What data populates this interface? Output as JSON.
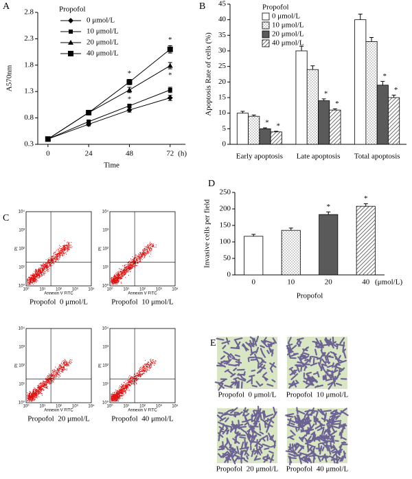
{
  "chart_data": [
    {
      "type": "line",
      "panel": "A",
      "y_label": "A570nm",
      "x_label": "Time",
      "x_unit": "(h)",
      "legend_title": "Propofol",
      "x": [
        0,
        24,
        48,
        72
      ],
      "xlim": [
        -6,
        81
      ],
      "xticks": [
        0,
        24,
        48,
        72
      ],
      "ylim": [
        0.3,
        2.8
      ],
      "yticks": [
        0.3,
        0.8,
        1.3,
        1.8,
        2.3,
        2.8
      ],
      "series": [
        {
          "name": "0 μmol/L",
          "color": "#000000",
          "marker": "diamond",
          "values": [
            0.4,
            0.68,
            0.95,
            1.18
          ],
          "errors": [
            0.02,
            0.03,
            0.04,
            0.05
          ],
          "significance": [
            null,
            null,
            null,
            null
          ]
        },
        {
          "name": "10 μmol/L",
          "color": "#000000",
          "marker": "square",
          "values": [
            0.4,
            0.73,
            1.03,
            1.33
          ],
          "errors": [
            0.02,
            0.03,
            0.03,
            0.05
          ],
          "significance": [
            null,
            null,
            null,
            null
          ]
        },
        {
          "name": "20 μmol/L",
          "color": "#000000",
          "marker": "triangle",
          "values": [
            0.4,
            0.9,
            1.33,
            1.79
          ],
          "errors": [
            0.02,
            0.04,
            0.05,
            0.06
          ],
          "significance": [
            null,
            null,
            "*",
            "*"
          ]
        },
        {
          "name": "40 μmol/L",
          "color": "#000000",
          "marker": "square-large",
          "values": [
            0.4,
            0.9,
            1.48,
            2.1
          ],
          "errors": [
            0.02,
            0.04,
            0.05,
            0.07
          ],
          "significance": [
            null,
            null,
            "*",
            "*"
          ]
        }
      ]
    },
    {
      "type": "bar",
      "panel": "B",
      "y_label": "Apoptosis Rate of cells (%)",
      "legend_title": "Propofol",
      "categories": [
        "Early apoptosis",
        "Late apoptosis",
        "Total apoptosis"
      ],
      "ylim": [
        0,
        45
      ],
      "yticks": [
        0,
        5,
        10,
        15,
        20,
        25,
        30,
        35,
        40,
        45
      ],
      "series": [
        {
          "name": "0 μmol/L",
          "color": "#ffffff",
          "pattern": "none",
          "values": [
            10,
            30,
            40
          ],
          "errors": [
            0.6,
            1.5,
            1.8
          ],
          "significance": [
            null,
            null,
            null
          ]
        },
        {
          "name": "10 μmol/L",
          "color": "#ffffff",
          "pattern": "dots",
          "values": [
            9,
            24,
            33
          ],
          "errors": [
            0.4,
            1.2,
            1.3
          ],
          "significance": [
            null,
            null,
            null
          ]
        },
        {
          "name": "20 μmol/L",
          "color": "#5a5a5a",
          "pattern": "solid",
          "values": [
            5,
            14,
            19
          ],
          "errors": [
            0.3,
            0.6,
            1.2
          ],
          "significance": [
            "*",
            "*",
            "*"
          ]
        },
        {
          "name": "40 μmol/L",
          "color": "#ffffff",
          "pattern": "hatch",
          "values": [
            4,
            11,
            15
          ],
          "errors": [
            0.2,
            0.4,
            0.8
          ],
          "significance": [
            "*",
            "*",
            "*"
          ]
        }
      ]
    },
    {
      "type": "bar",
      "panel": "D",
      "y_label": "Invasive cells per field",
      "x_label": "Propofol",
      "x_unit": "(μmol/L)",
      "categories": [
        "0",
        "10",
        "20",
        "40"
      ],
      "ylim": [
        0,
        250
      ],
      "yticks": [
        0,
        50,
        100,
        150,
        200,
        250
      ],
      "series": [
        {
          "colors": [
            "#ffffff",
            "#ffffff",
            "#5a5a5a",
            "#ffffff"
          ],
          "patterns": [
            "none",
            "dots",
            "solid",
            "hatch"
          ],
          "values": [
            117,
            135,
            183,
            208
          ],
          "errors": [
            6,
            7,
            8,
            8
          ],
          "significance": [
            null,
            null,
            "*",
            "*"
          ]
        }
      ]
    }
  ],
  "flow_cytometry": {
    "panel": "C",
    "x_label": "Annexin V FITC",
    "y_label": "PI",
    "ticks": [
      "10⁰",
      "10¹",
      "10²",
      "10³",
      "10⁴"
    ],
    "plots": [
      {
        "caption": "Propofol  0 μmol/L"
      },
      {
        "caption": "Propofol  10 μmol/L"
      },
      {
        "caption": "Propofol  20 μmol/L"
      },
      {
        "caption": "Propofol  40 μmol/L"
      }
    ]
  },
  "micrographs": {
    "panel": "E",
    "images": [
      {
        "caption": "Propofol  0 μmol/L"
      },
      {
        "caption": "Propofol  10 μmol/L"
      },
      {
        "caption": "Propofol  20 μmol/L"
      },
      {
        "caption": "Propofol  40 μmol/L"
      }
    ]
  }
}
